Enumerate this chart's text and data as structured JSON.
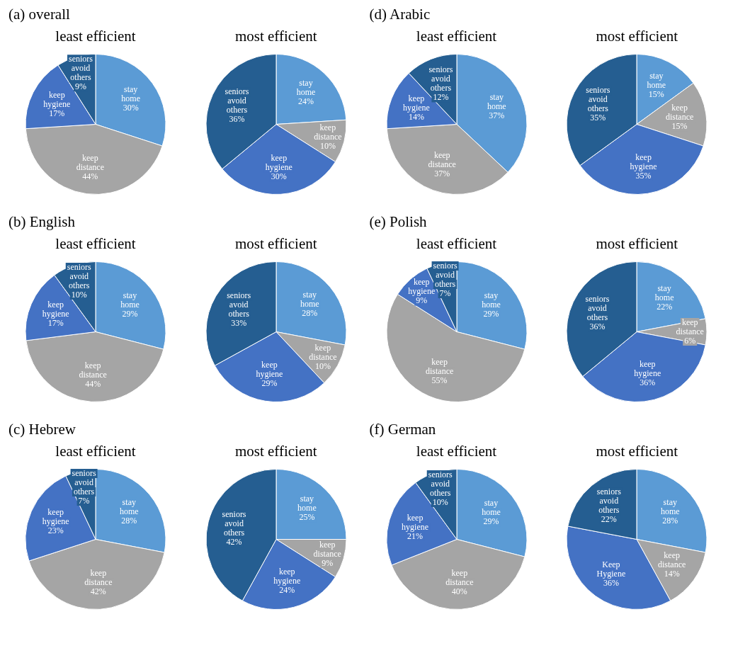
{
  "chart_data": [
    {
      "type": "pie",
      "title": "(a) overall",
      "subtitle": "least efficient",
      "categories": [
        "stay home",
        "keep distance",
        "keep hygiene",
        "seniors avoid others"
      ],
      "values": [
        30,
        44,
        17,
        9
      ],
      "value_labels": [
        "30%",
        "44%",
        "17%",
        "9%"
      ],
      "colors": [
        "#5b9bd5",
        "#a5a5a5",
        "#4472c4",
        "#255e91"
      ],
      "legend": false
    },
    {
      "type": "pie",
      "subtitle": "most efficient",
      "categories": [
        "stay home",
        "keep distance",
        "keep hygiene",
        "seniors avoid others"
      ],
      "values": [
        24,
        10,
        30,
        36
      ],
      "value_labels": [
        "24%",
        "10%",
        "30%",
        "36%"
      ],
      "colors": [
        "#5b9bd5",
        "#a5a5a5",
        "#4472c4",
        "#255e91"
      ],
      "legend": false
    },
    {
      "type": "pie",
      "title": "(d) Arabic",
      "subtitle": "least efficient",
      "categories": [
        "stay home",
        "keep distance",
        "keep hygiene",
        "seniors avoid others"
      ],
      "values": [
        37,
        37,
        14,
        12
      ],
      "value_labels": [
        "37%",
        "37%",
        "14%",
        "12%"
      ],
      "colors": [
        "#5b9bd5",
        "#a5a5a5",
        "#4472c4",
        "#255e91"
      ],
      "legend": false
    },
    {
      "type": "pie",
      "subtitle": "most efficient",
      "categories": [
        "stay home",
        "keep distance",
        "keep hygiene",
        "seniors avoid others"
      ],
      "values": [
        15,
        15,
        35,
        35
      ],
      "value_labels": [
        "15%",
        "15%",
        "35%",
        "35%"
      ],
      "colors": [
        "#5b9bd5",
        "#a5a5a5",
        "#4472c4",
        "#255e91"
      ],
      "legend": false
    },
    {
      "type": "pie",
      "title": "(b) English",
      "subtitle": "least efficient",
      "categories": [
        "stay home",
        "keep distance",
        "keep hygiene",
        "seniors avoid others"
      ],
      "values": [
        29,
        44,
        17,
        10
      ],
      "value_labels": [
        "29%",
        "44%",
        "17%",
        "10%"
      ],
      "colors": [
        "#5b9bd5",
        "#a5a5a5",
        "#4472c4",
        "#255e91"
      ],
      "legend": false
    },
    {
      "type": "pie",
      "subtitle": "most efficient",
      "categories": [
        "stay home",
        "keep distance",
        "keep hygiene",
        "seniors avoid others"
      ],
      "values": [
        28,
        10,
        29,
        33
      ],
      "value_labels": [
        "28%",
        "10%",
        "29%",
        "33%"
      ],
      "colors": [
        "#5b9bd5",
        "#a5a5a5",
        "#4472c4",
        "#255e91"
      ],
      "legend": false
    },
    {
      "type": "pie",
      "title": "(e) Polish",
      "subtitle": "least efficient",
      "categories": [
        "stay home",
        "keep distance",
        "keep hygiene",
        "seniors avoid others"
      ],
      "values": [
        29,
        55,
        9,
        7
      ],
      "value_labels": [
        "29%",
        "55%",
        "9%",
        "7%"
      ],
      "colors": [
        "#5b9bd5",
        "#a5a5a5",
        "#4472c4",
        "#255e91"
      ],
      "legend": false
    },
    {
      "type": "pie",
      "subtitle": "most efficient",
      "categories": [
        "stay home",
        "keep distance",
        "keep hygiene",
        "seniors avoid others"
      ],
      "values": [
        22,
        6,
        36,
        36
      ],
      "value_labels": [
        "22%",
        "6%",
        "36%",
        "36%"
      ],
      "colors": [
        "#5b9bd5",
        "#a5a5a5",
        "#4472c4",
        "#255e91"
      ],
      "legend": false
    },
    {
      "type": "pie",
      "title": "(c) Hebrew",
      "subtitle": "least efficient",
      "categories": [
        "stay home",
        "keep distance",
        "keep hygiene",
        "seniors avoid others"
      ],
      "values": [
        28,
        42,
        23,
        7
      ],
      "value_labels": [
        "28%",
        "42%",
        "23%",
        "7%"
      ],
      "colors": [
        "#5b9bd5",
        "#a5a5a5",
        "#4472c4",
        "#255e91"
      ],
      "legend": false
    },
    {
      "type": "pie",
      "subtitle": "most efficient",
      "categories": [
        "stay home",
        "keep distance",
        "keep hygiene",
        "seniors avoid others"
      ],
      "values": [
        25,
        9,
        24,
        42
      ],
      "value_labels": [
        "25%",
        "9%",
        "24%",
        "42%"
      ],
      "colors": [
        "#5b9bd5",
        "#a5a5a5",
        "#4472c4",
        "#255e91"
      ],
      "legend": false
    },
    {
      "type": "pie",
      "title": "(f) German",
      "subtitle": "least efficient",
      "categories": [
        "stay home",
        "keep distance",
        "keep hygiene",
        "seniors avoid others"
      ],
      "values": [
        29,
        40,
        21,
        10
      ],
      "value_labels": [
        "29%",
        "40%",
        "21%",
        "10%"
      ],
      "colors": [
        "#5b9bd5",
        "#a5a5a5",
        "#4472c4",
        "#255e91"
      ],
      "legend": false
    },
    {
      "type": "pie",
      "subtitle": "most efficient",
      "categories": [
        "stay home",
        "keep distance",
        "Keep Hygiene",
        "seniors avoid others"
      ],
      "values": [
        28,
        14,
        36,
        22
      ],
      "value_labels": [
        "28%",
        "14%",
        "36%",
        "22%"
      ],
      "colors": [
        "#5b9bd5",
        "#a5a5a5",
        "#4472c4",
        "#255e91"
      ],
      "legend": false
    }
  ]
}
